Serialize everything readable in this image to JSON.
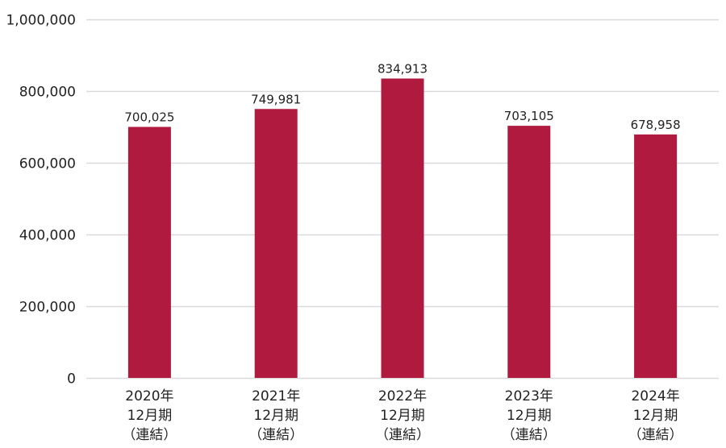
{
  "chart_data": {
    "type": "bar",
    "categories": [
      [
        "2020年",
        "12月期",
        "（連結）"
      ],
      [
        "2021年",
        "12月期",
        "（連結）"
      ],
      [
        "2022年",
        "12月期",
        "（連結）"
      ],
      [
        "2023年",
        "12月期",
        "（連結）"
      ],
      [
        "2024年",
        "12月期",
        "（連結）"
      ]
    ],
    "values": [
      700025,
      749981,
      834913,
      703105,
      678958
    ],
    "value_labels": [
      "700,025",
      "749,981",
      "834,913",
      "703,105",
      "678,958"
    ],
    "ylim": [
      0,
      1000000
    ],
    "yticks": [
      0,
      200000,
      400000,
      600000,
      800000,
      1000000
    ],
    "ytick_labels": [
      "0",
      "200,000",
      "400,000",
      "600,000",
      "800,000",
      "1,000,000"
    ],
    "grid": true,
    "title": "",
    "xlabel": "",
    "ylabel": "",
    "colors": {
      "bar": "#b01a3e",
      "grid": "#d9d9d9",
      "text": "#222222"
    }
  }
}
